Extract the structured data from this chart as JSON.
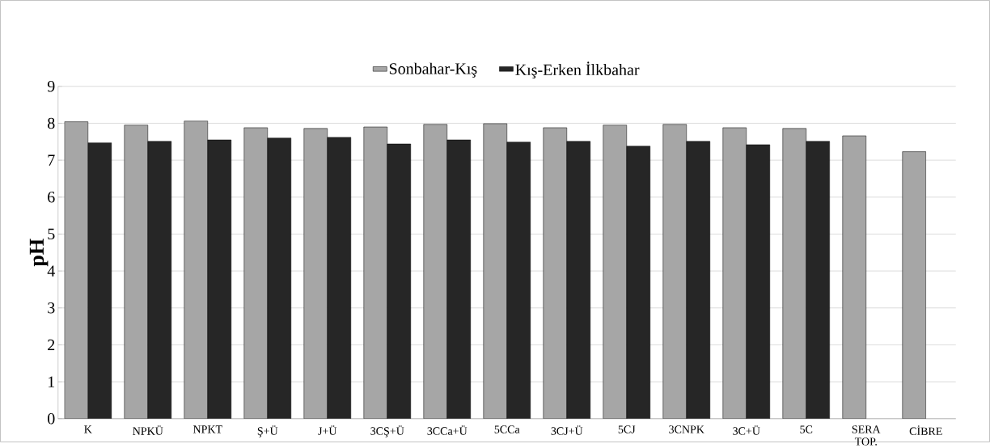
{
  "chart_data": {
    "type": "bar",
    "ylabel": "pH",
    "categories": [
      "K",
      "NPKÜ",
      "NPKT",
      "Ş+Ü",
      "J+Ü",
      "3CŞ+Ü",
      "3CCa+Ü",
      "5CCa",
      "3CJ+Ü",
      "5CJ",
      "3CNPK",
      "3C+Ü",
      "5C",
      "SERA TOP.",
      "CİBRE"
    ],
    "series": [
      {
        "name": "Sonbahar-Kış",
        "color": "#a6a6a6",
        "values": [
          8.04,
          7.95,
          8.06,
          7.88,
          7.86,
          7.9,
          7.97,
          7.99,
          7.88,
          7.95,
          7.97,
          7.88,
          7.86,
          7.66,
          7.23
        ]
      },
      {
        "name": "Kış-Erken İlkbahar",
        "color": "#262626",
        "values": [
          7.47,
          7.51,
          7.55,
          7.6,
          7.62,
          7.44,
          7.55,
          7.49,
          7.51,
          7.38,
          7.51,
          7.42,
          7.51,
          null,
          null
        ]
      }
    ],
    "ylim": [
      0,
      9
    ],
    "yticks": [
      0,
      1,
      2,
      3,
      4,
      5,
      6,
      7,
      8,
      9
    ],
    "grid": "y",
    "legend": "top"
  }
}
